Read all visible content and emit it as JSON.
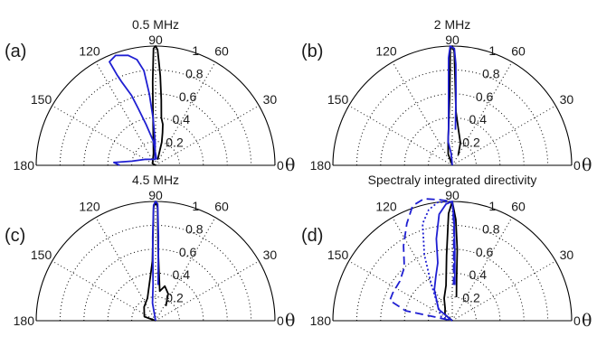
{
  "chart_data": [
    {
      "type": "polar-line",
      "panel_label": "(a)",
      "title": "0.5 MHz",
      "theta_range_deg": [
        0,
        180
      ],
      "r_range": [
        0,
        1
      ],
      "radial_ticks": [
        "0.2",
        "0.4",
        "0.6",
        "0.8",
        "1"
      ],
      "angle_ticks": [
        "0",
        "30",
        "60",
        "90",
        "120",
        "150",
        "180"
      ],
      "theta_symbol": "θ",
      "grid": true,
      "series": [
        {
          "color": "#000000",
          "style": "solid",
          "points": [
            [
              70,
              0.05
            ],
            [
              75,
              0.2
            ],
            [
              78,
              0.28
            ],
            [
              80,
              0.35
            ],
            [
              83,
              0.4
            ],
            [
              85,
              0.55
            ],
            [
              87,
              0.75
            ],
            [
              88,
              0.85
            ],
            [
              89,
              0.97
            ],
            [
              90,
              1.0
            ],
            [
              91,
              0.98
            ],
            [
              92,
              0.7
            ],
            [
              93,
              0.4
            ],
            [
              100,
              0.1
            ],
            [
              150,
              0.03
            ],
            [
              180,
              0.0
            ]
          ]
        },
        {
          "color": "#1f1fd2",
          "style": "solid",
          "points": [
            [
              80,
              0.05
            ],
            [
              95,
              0.2
            ],
            [
              103,
              0.35
            ],
            [
              107,
              0.5
            ],
            [
              109,
              0.62
            ],
            [
              112,
              0.75
            ],
            [
              113,
              0.82
            ],
            [
              114,
              0.95
            ],
            [
              110,
              0.98
            ],
            [
              104,
              0.95
            ],
            [
              100,
              0.9
            ],
            [
              97,
              0.8
            ],
            [
              95,
              0.6
            ],
            [
              93,
              0.4
            ],
            [
              91,
              0.2
            ],
            [
              95,
              0.05
            ],
            [
              150,
              0.1
            ],
            [
              170,
              0.2
            ],
            [
              176,
              0.35
            ],
            [
              180,
              0.3
            ]
          ]
        }
      ]
    },
    {
      "type": "polar-line",
      "panel_label": "(b)",
      "title": "2 MHz",
      "theta_range_deg": [
        0,
        180
      ],
      "r_range": [
        0,
        1
      ],
      "radial_ticks": [
        "0.2",
        "0.4",
        "0.6",
        "0.8",
        "1"
      ],
      "angle_ticks": [
        "0",
        "30",
        "60",
        "90",
        "120",
        "150",
        "180"
      ],
      "theta_symbol": "θ",
      "grid": true,
      "series": [
        {
          "color": "#000000",
          "style": "solid",
          "points": [
            [
              60,
              0.1
            ],
            [
              70,
              0.2
            ],
            [
              80,
              0.3
            ],
            [
              86,
              0.45
            ],
            [
              88,
              0.7
            ],
            [
              89,
              0.95
            ],
            [
              90,
              1.0
            ],
            [
              91,
              0.97
            ],
            [
              92,
              0.6
            ],
            [
              100,
              0.2
            ],
            [
              110,
              0.1
            ],
            [
              180,
              0.0
            ]
          ]
        },
        {
          "color": "#1f1fd2",
          "style": "solid",
          "points": [
            [
              85,
              0.3
            ],
            [
              87,
              0.6
            ],
            [
              88,
              0.85
            ],
            [
              89,
              0.98
            ],
            [
              91,
              1.0
            ],
            [
              92,
              0.9
            ],
            [
              93,
              0.6
            ],
            [
              96,
              0.3
            ],
            [
              100,
              0.2
            ],
            [
              95,
              0.1
            ],
            [
              180,
              0.0
            ]
          ]
        }
      ]
    },
    {
      "type": "polar-line",
      "panel_label": "(c)",
      "title": "4.5 MHz",
      "theta_range_deg": [
        0,
        180
      ],
      "r_range": [
        0,
        1
      ],
      "radial_ticks": [
        "0.2",
        "0.4",
        "0.6",
        "0.8",
        "1"
      ],
      "angle_ticks": [
        "0",
        "30",
        "60",
        "90",
        "120",
        "150",
        "180"
      ],
      "theta_symbol": "θ",
      "grid": true,
      "series": [
        {
          "color": "#000000",
          "style": "solid",
          "points": [
            [
              55,
              0.15
            ],
            [
              65,
              0.25
            ],
            [
              75,
              0.3
            ],
            [
              82,
              0.25
            ],
            [
              88,
              0.6
            ],
            [
              89,
              0.95
            ],
            [
              90,
              1.0
            ],
            [
              91,
              0.95
            ],
            [
              93,
              0.5
            ],
            [
              110,
              0.2
            ],
            [
              130,
              0.15
            ],
            [
              160,
              0.1
            ],
            [
              180,
              0.0
            ]
          ]
        },
        {
          "color": "#1f1fd2",
          "style": "solid",
          "points": [
            [
              86,
              0.3
            ],
            [
              88,
              0.7
            ],
            [
              89,
              0.98
            ],
            [
              90,
              1.0
            ],
            [
              91,
              0.97
            ],
            [
              92,
              0.7
            ],
            [
              94,
              0.3
            ],
            [
              100,
              0.15
            ],
            [
              180,
              0.0
            ]
          ]
        }
      ]
    },
    {
      "type": "polar-line",
      "panel_label": "(d)",
      "title": "Spectraly integrated directivity",
      "theta_range_deg": [
        0,
        180
      ],
      "r_range": [
        0,
        1
      ],
      "radial_ticks": [
        "0.2",
        "0.4",
        "0.6",
        "0.8",
        "1"
      ],
      "angle_ticks": [
        "0",
        "30",
        "60",
        "90",
        "120",
        "150",
        "180"
      ],
      "theta_symbol": "θ",
      "grid": true,
      "series": [
        {
          "color": "#000000",
          "style": "solid",
          "points": [
            [
              80,
              0.2
            ],
            [
              84,
              0.35
            ],
            [
              86,
              0.6
            ],
            [
              88,
              0.85
            ],
            [
              90,
              1.0
            ],
            [
              92,
              0.9
            ],
            [
              95,
              0.55
            ],
            [
              100,
              0.3
            ],
            [
              110,
              0.2
            ],
            [
              120,
              0.12
            ],
            [
              140,
              0.08
            ],
            [
              180,
              0.0
            ]
          ]
        },
        {
          "color": "#1f1fd2",
          "style": "solid",
          "points": [
            [
              86,
              0.3
            ],
            [
              88,
              0.6
            ],
            [
              89,
              0.85
            ],
            [
              90,
              1.0
            ],
            [
              93,
              0.98
            ],
            [
              97,
              0.9
            ],
            [
              101,
              0.7
            ],
            [
              104,
              0.5
            ],
            [
              110,
              0.4
            ],
            [
              120,
              0.3
            ],
            [
              140,
              0.15
            ],
            [
              180,
              0.0
            ]
          ]
        },
        {
          "color": "#1f1fd2",
          "style": "dotted",
          "points": [
            [
              88,
              0.4
            ],
            [
              89,
              0.8
            ],
            [
              90,
              1.0
            ],
            [
              97,
              1.0
            ],
            [
              102,
              0.95
            ],
            [
              107,
              0.85
            ],
            [
              110,
              0.7
            ],
            [
              113,
              0.6
            ],
            [
              120,
              0.35
            ],
            [
              130,
              0.2
            ],
            [
              160,
              0.1
            ],
            [
              180,
              0.0
            ]
          ]
        },
        {
          "color": "#1f1fd2",
          "style": "dashed",
          "points": [
            [
              88,
              0.3
            ],
            [
              89,
              0.8
            ],
            [
              90,
              1.0
            ],
            [
              96,
              1.02
            ],
            [
              103,
              1.05
            ],
            [
              109,
              1.02
            ],
            [
              115,
              0.9
            ],
            [
              123,
              0.75
            ],
            [
              132,
              0.6
            ],
            [
              143,
              0.55
            ],
            [
              155,
              0.55
            ],
            [
              162,
              0.55
            ],
            [
              168,
              0.4
            ],
            [
              180,
              0.0
            ]
          ]
        }
      ]
    }
  ]
}
